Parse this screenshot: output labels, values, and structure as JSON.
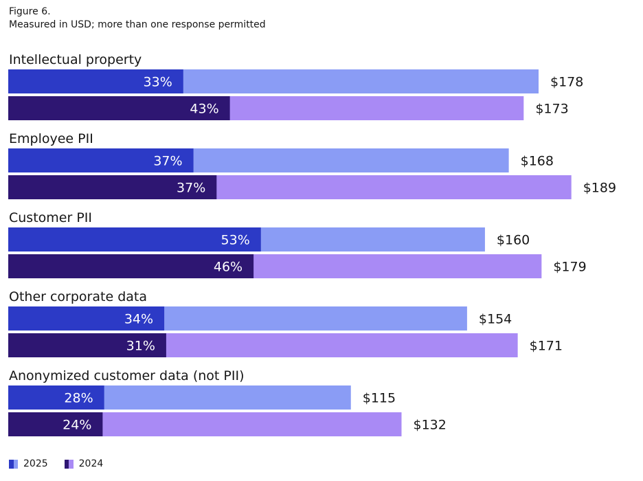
{
  "figure": {
    "label": "Figure 6.",
    "subtitle": "Measured in USD; more than one response permitted"
  },
  "colors": {
    "2025_dark": "#2c3ac6",
    "2025_light": "#8a9cf5",
    "2024_dark": "#2e1672",
    "2024_light": "#a98af5"
  },
  "legend": [
    {
      "label": "2025",
      "dark": "#2c3ac6",
      "light": "#8a9cf5"
    },
    {
      "label": "2024",
      "dark": "#2e1672",
      "light": "#a98af5"
    }
  ],
  "chart_data": {
    "type": "bar",
    "orientation": "horizontal",
    "title": "Figure 6.",
    "subtitle": "Measured in USD; more than one response permitted",
    "categories": [
      "Intellectual property",
      "Employee PII",
      "Customer PII",
      "Other corporate data",
      "Anonymized customer data (not PII)"
    ],
    "series": [
      {
        "name": "2025",
        "percent": [
          33,
          37,
          53,
          34,
          28
        ],
        "values": [
          178,
          168,
          160,
          154,
          115
        ],
        "percent_labels": [
          "33%",
          "37%",
          "53%",
          "34%",
          "28%"
        ],
        "value_labels": [
          "$178",
          "$168",
          "$160",
          "$154",
          "$115"
        ]
      },
      {
        "name": "2024",
        "percent": [
          43,
          37,
          46,
          31,
          24
        ],
        "values": [
          173,
          189,
          179,
          171,
          132
        ],
        "percent_labels": [
          "43%",
          "37%",
          "46%",
          "31%",
          "24%"
        ],
        "value_labels": [
          "$173",
          "$189",
          "$179",
          "$171",
          "$132"
        ]
      }
    ],
    "xlim": [
      0,
      200
    ],
    "grid": false,
    "legend_position": "bottom-left"
  }
}
